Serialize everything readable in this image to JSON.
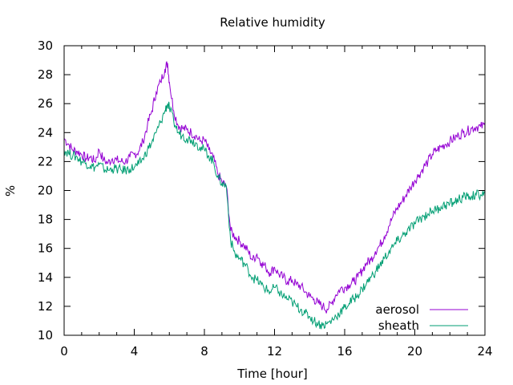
{
  "chart_data": {
    "type": "line",
    "title": "Relative humidity",
    "xlabel": "Time [hour]",
    "ylabel": "%",
    "xlim": [
      0,
      24
    ],
    "ylim": [
      10,
      30
    ],
    "xticks": [
      0,
      4,
      8,
      12,
      16,
      20,
      24
    ],
    "yticks": [
      10,
      12,
      14,
      16,
      18,
      20,
      22,
      24,
      26,
      28,
      30
    ],
    "grid": false,
    "legend_position": "bottom-right",
    "series": [
      {
        "name": "aerosol",
        "color": "#9400d3",
        "x": [
          0,
          0.25,
          0.5,
          0.75,
          1,
          1.25,
          1.5,
          1.75,
          2,
          2.25,
          2.5,
          2.75,
          3,
          3.25,
          3.5,
          3.75,
          4,
          4.25,
          4.5,
          4.75,
          5,
          5.25,
          5.5,
          5.75,
          5.9,
          6,
          6.25,
          6.5,
          6.75,
          7,
          7.25,
          7.5,
          7.75,
          8,
          8.25,
          8.5,
          8.75,
          9,
          9.25,
          9.5,
          9.75,
          10,
          10.25,
          10.5,
          10.75,
          11,
          11.25,
          11.5,
          11.75,
          12,
          12.25,
          12.5,
          12.75,
          13,
          13.25,
          13.5,
          13.75,
          14,
          14.25,
          14.5,
          14.75,
          15,
          15.25,
          15.5,
          15.75,
          16,
          16.25,
          16.5,
          16.75,
          17,
          17.25,
          17.5,
          17.75,
          18,
          18.25,
          18.5,
          18.75,
          19,
          19.25,
          19.5,
          19.75,
          20,
          20.25,
          20.5,
          20.75,
          21,
          21.25,
          21.5,
          21.75,
          22,
          22.25,
          22.5,
          22.75,
          23,
          23.25,
          23.5,
          23.75,
          24
        ],
        "y": [
          23.6,
          23.2,
          22.8,
          22.7,
          22.5,
          22.2,
          22.3,
          22.0,
          22.8,
          22.1,
          21.9,
          22.2,
          22.1,
          22.0,
          22.0,
          22.3,
          22.5,
          22.7,
          23.4,
          24.5,
          25.5,
          26.8,
          27.5,
          28.4,
          28.8,
          27.5,
          25.5,
          24.5,
          24.3,
          24.2,
          24.0,
          23.8,
          23.4,
          23.5,
          22.8,
          22.3,
          21.2,
          20.6,
          20.3,
          17.2,
          16.8,
          16.5,
          16.2,
          15.8,
          15.2,
          15.6,
          15.0,
          14.7,
          14.3,
          14.7,
          14.2,
          14.0,
          13.7,
          13.8,
          13.5,
          13.4,
          13.0,
          12.7,
          12.5,
          12.2,
          12.0,
          11.8,
          12.2,
          12.8,
          13.2,
          13.3,
          13.5,
          13.7,
          14.0,
          14.5,
          15.0,
          15.2,
          15.8,
          16.2,
          16.8,
          17.5,
          18.2,
          18.8,
          19.2,
          19.7,
          20.2,
          20.7,
          21.1,
          21.6,
          22.0,
          22.5,
          22.8,
          23.0,
          23.2,
          23.4,
          23.6,
          23.8,
          24.0,
          24.1,
          24.3,
          24.4,
          24.4,
          24.5
        ]
      },
      {
        "name": "sheath",
        "color": "#009e73",
        "x": [
          0,
          0.25,
          0.5,
          0.75,
          1,
          1.25,
          1.5,
          1.75,
          2,
          2.25,
          2.5,
          2.75,
          3,
          3.25,
          3.5,
          3.75,
          4,
          4.25,
          4.5,
          4.75,
          5,
          5.25,
          5.5,
          5.75,
          5.9,
          6,
          6.25,
          6.5,
          6.75,
          7,
          7.25,
          7.5,
          7.75,
          8,
          8.25,
          8.5,
          8.75,
          9,
          9.25,
          9.5,
          9.75,
          10,
          10.25,
          10.5,
          10.75,
          11,
          11.25,
          11.5,
          11.75,
          12,
          12.25,
          12.5,
          12.75,
          13,
          13.25,
          13.5,
          13.75,
          14,
          14.25,
          14.5,
          14.75,
          15,
          15.25,
          15.5,
          15.75,
          16,
          16.25,
          16.5,
          16.75,
          17,
          17.25,
          17.5,
          17.75,
          18,
          18.25,
          18.5,
          18.75,
          19,
          19.25,
          19.5,
          19.75,
          20,
          20.25,
          20.5,
          20.75,
          21,
          21.25,
          21.5,
          21.75,
          22,
          22.25,
          22.5,
          22.75,
          23,
          23.25,
          23.5,
          23.75,
          24
        ],
        "y": [
          22.8,
          22.6,
          22.4,
          22.3,
          22.0,
          21.9,
          21.7,
          21.6,
          21.8,
          21.5,
          21.4,
          21.5,
          21.5,
          21.4,
          21.4,
          21.5,
          21.6,
          21.8,
          22.2,
          22.8,
          23.3,
          24.0,
          24.7,
          25.5,
          26.0,
          25.7,
          24.8,
          24.0,
          23.8,
          23.6,
          23.5,
          23.3,
          23.0,
          22.8,
          22.4,
          22.0,
          21.0,
          20.5,
          20.3,
          16.5,
          15.6,
          15.3,
          15.0,
          14.5,
          14.0,
          13.8,
          13.5,
          13.2,
          13.0,
          13.3,
          13.0,
          12.7,
          12.5,
          12.3,
          12.0,
          11.8,
          11.5,
          11.3,
          11.0,
          10.8,
          10.7,
          10.8,
          11.0,
          11.3,
          11.6,
          11.9,
          12.2,
          12.5,
          12.8,
          13.2,
          13.6,
          14.0,
          14.4,
          14.8,
          15.3,
          15.7,
          16.1,
          16.5,
          16.8,
          17.1,
          17.4,
          17.7,
          18.0,
          18.2,
          18.4,
          18.6,
          18.7,
          18.9,
          19.0,
          19.1,
          19.2,
          19.4,
          19.5,
          19.6,
          19.6,
          19.7,
          19.7,
          19.8
        ]
      }
    ]
  }
}
